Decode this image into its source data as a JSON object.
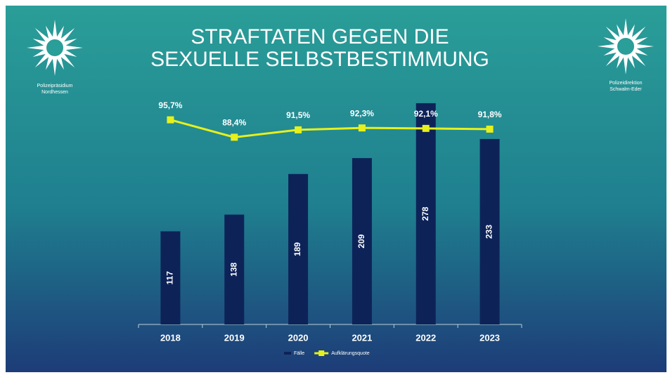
{
  "header": {
    "left_logo_text": [
      "Polizeipräsidium",
      "Nordhessen"
    ],
    "right_logo_text": [
      "Polizeidirektion",
      "Schwalm-Eder"
    ]
  },
  "chart_data": {
    "type": "bar",
    "title": [
      "STRAFTATEN GEGEN DIE",
      "SEXUELLE SELBSTBESTIMMUNG"
    ],
    "categories": [
      "2018",
      "2019",
      "2020",
      "2021",
      "2022",
      "2023"
    ],
    "series": [
      {
        "name": "Fälle",
        "type": "bar",
        "color": "#0d2358",
        "values": [
          117,
          138,
          189,
          209,
          278,
          233
        ]
      },
      {
        "name": "Aufklärungsquote",
        "type": "line",
        "axis": "y2",
        "color": "#e6f01c",
        "values": [
          95.7,
          88.4,
          91.5,
          92.3,
          92.1,
          91.8
        ],
        "value_labels": [
          "95,7%",
          "88,4%",
          "91,5%",
          "92,3%",
          "92,1%",
          "91,8%"
        ]
      }
    ],
    "ylim": [
      0,
      300
    ],
    "y2lim": [
      10,
      110
    ],
    "legend": "bottom"
  }
}
